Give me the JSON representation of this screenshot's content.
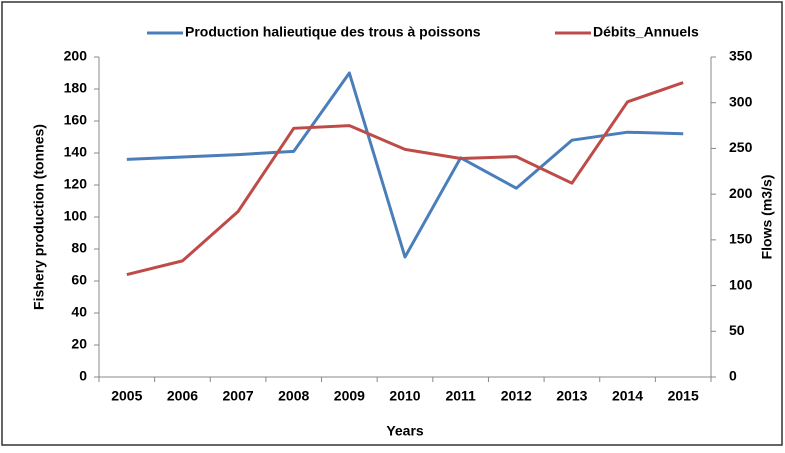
{
  "chart_data": {
    "type": "line",
    "x_label": "Years",
    "y_label": "Fishery production (tonnes)",
    "y2_label": "Flows (m3/s)",
    "categories": [
      "2005",
      "2006",
      "2007",
      "2008",
      "2009",
      "2010",
      "2011",
      "2012",
      "2013",
      "2014",
      "2015"
    ],
    "series": [
      {
        "name": "Production halieutique des trous à poissons",
        "color": "#4a7ebb",
        "values": [
          136,
          137.5,
          139,
          141,
          190,
          75,
          137,
          118,
          148,
          153,
          152
        ]
      },
      {
        "name": "Débits_Annuels",
        "color": "#be4b48",
        "axis": "y2",
        "values": [
          112,
          127,
          181,
          272,
          275,
          249,
          239,
          241,
          212,
          301,
          322
        ]
      }
    ],
    "ylim": [
      0,
      200
    ],
    "yticks": [
      0,
      20,
      40,
      60,
      80,
      100,
      120,
      140,
      160,
      180,
      200
    ],
    "y2lim": [
      0,
      350
    ],
    "y2ticks": [
      0,
      50,
      100,
      150,
      200,
      250,
      300,
      350
    ],
    "grid": false,
    "legend": "top"
  }
}
